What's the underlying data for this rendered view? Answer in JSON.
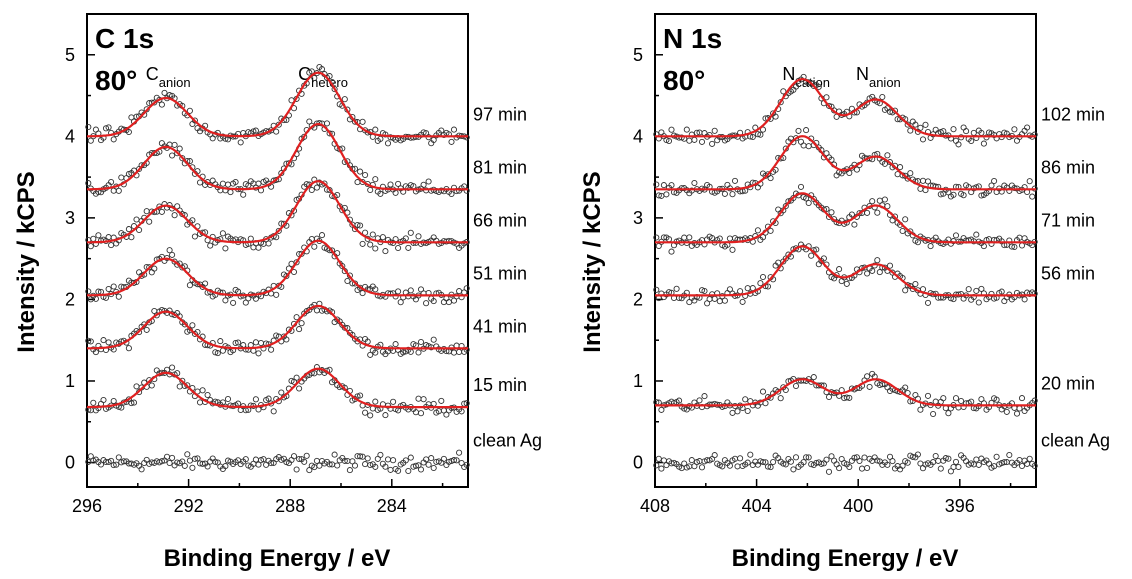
{
  "figure": {
    "ylabel": "Intensity / kCPS",
    "xlabel": "Binding Energy / eV"
  },
  "chart_data": [
    {
      "type": "scatter",
      "title": "C 1s",
      "subtitle": "80°",
      "xlabel": "Binding Energy / eV",
      "ylabel": "Intensity / kCPS",
      "xlim": [
        296,
        281
      ],
      "ylim": [
        -0.3,
        5.5
      ],
      "x_ticks": [
        296,
        292,
        288,
        284
      ],
      "y_ticks": [
        0,
        1,
        2,
        3,
        4,
        5
      ],
      "grid": false,
      "fit_color": "#e02020",
      "marker": "open-circle",
      "peaks": [
        {
          "main": "C",
          "sub": "anion",
          "x": 292.9
        },
        {
          "main": "C",
          "sub": "hetero",
          "x": 286.9
        }
      ],
      "series": [
        {
          "name": "clean Ag",
          "baseline": 0.0,
          "fit": false,
          "peak_heights": [
            0,
            0
          ]
        },
        {
          "name": "15 min",
          "baseline": 0.68,
          "fit": true,
          "peak_heights": [
            0.42,
            0.47
          ]
        },
        {
          "name": "41 min",
          "baseline": 1.4,
          "fit": true,
          "peak_heights": [
            0.45,
            0.52
          ]
        },
        {
          "name": "51 min",
          "baseline": 2.05,
          "fit": true,
          "peak_heights": [
            0.45,
            0.67
          ]
        },
        {
          "name": "66 min",
          "baseline": 2.7,
          "fit": true,
          "peak_heights": [
            0.45,
            0.75
          ]
        },
        {
          "name": "81 min",
          "baseline": 3.35,
          "fit": true,
          "peak_heights": [
            0.52,
            0.8
          ]
        },
        {
          "name": "97 min",
          "baseline": 4.0,
          "fit": true,
          "peak_heights": [
            0.47,
            0.78
          ]
        }
      ]
    },
    {
      "type": "scatter",
      "title": "N 1s",
      "subtitle": "80°",
      "xlabel": "Binding Energy / eV",
      "ylabel": "Intensity / kCPS",
      "xlim": [
        408,
        393
      ],
      "ylim": [
        -0.3,
        5.5
      ],
      "x_ticks": [
        408,
        404,
        400,
        396
      ],
      "y_ticks": [
        0,
        1,
        2,
        3,
        4,
        5
      ],
      "grid": false,
      "fit_color": "#e02020",
      "marker": "open-circle",
      "peaks": [
        {
          "main": "N",
          "sub": "cation",
          "x": 402.2
        },
        {
          "main": "N",
          "sub": "anion",
          "x": 399.3
        }
      ],
      "series": [
        {
          "name": "clean Ag",
          "baseline": 0.0,
          "fit": false,
          "peak_heights": [
            0,
            0
          ]
        },
        {
          "name": "20 min",
          "baseline": 0.7,
          "fit": true,
          "peak_heights": [
            0.32,
            0.32
          ]
        },
        {
          "name": "56 min",
          "baseline": 2.05,
          "fit": true,
          "peak_heights": [
            0.6,
            0.38
          ]
        },
        {
          "name": "71 min",
          "baseline": 2.7,
          "fit": true,
          "peak_heights": [
            0.6,
            0.45
          ]
        },
        {
          "name": "86 min",
          "baseline": 3.35,
          "fit": true,
          "peak_heights": [
            0.65,
            0.4
          ]
        },
        {
          "name": "102 min",
          "baseline": 4.0,
          "fit": true,
          "peak_heights": [
            0.7,
            0.45
          ]
        }
      ]
    }
  ]
}
